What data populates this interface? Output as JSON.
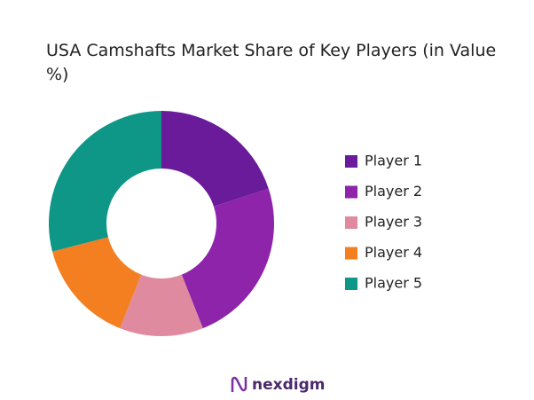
{
  "chart_data": {
    "type": "donut",
    "title": "USA Camshafts Market Share of Key Players (in Value %)",
    "categories": [
      "Player 1",
      "Player 2",
      "Player 3",
      "Player 4",
      "Player 5"
    ],
    "values": [
      20,
      24,
      12,
      15,
      29
    ],
    "colors": [
      "#6a1b9a",
      "#8e24aa",
      "#e08aa0",
      "#f47f20",
      "#0e9686"
    ],
    "legend": "right"
  },
  "footer": {
    "logo": "nexdigm"
  }
}
